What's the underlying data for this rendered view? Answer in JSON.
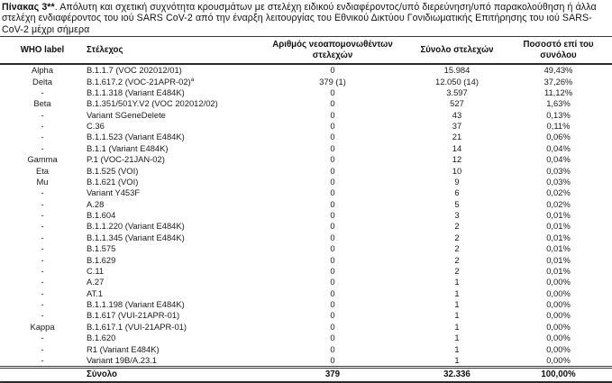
{
  "title": {
    "label": "Πίνακας 3**",
    "text": ". Απόλυτη και σχετική συχνότητα κρουσμάτων με στελέχη ειδικού ενδιαφέροντος/υπό διερεύνηση/υπό παρακολούθηση ή άλλα στελέχη ενδιαφέροντος του ιού SARS CoV-2 από την έναρξη λειτουργίας του Εθνικού Δικτύου Γονιδιωματικής Επιτήρησης του ιού SARS-CoV-2 μέχρι σήμερα"
  },
  "table": {
    "columns": {
      "who": "WHO label",
      "strain": "Στέλεχος",
      "new_isolates": "Αριθμός νεοαπομονωθέντων στελεχών",
      "total": "Σύνολο στελεχών",
      "pct": "Ποσοστό επί του συνόλου"
    },
    "rows": [
      {
        "who": "Alpha",
        "strain": "B.1.1.7 (VOC 202012/01)",
        "new_isolates": "0",
        "total": "15.984",
        "pct": "49,43%"
      },
      {
        "who": "Delta",
        "strain": "B.1.617.2 (VOC-21APR-02)",
        "sup": "a",
        "new_isolates": "379 (1)",
        "total": "12.050 (14)",
        "pct": "37,26%"
      },
      {
        "who": "-",
        "strain": "B.1.1.318 (Variant E484K)",
        "new_isolates": "0",
        "total": "3.597",
        "pct": "11,12%"
      },
      {
        "who": "Beta",
        "strain": "B.1.351/501Y.V2 (VOC 202012/02)",
        "new_isolates": "0",
        "total": "527",
        "pct": "1,63%"
      },
      {
        "who": "-",
        "strain": "Variant SGeneDelete",
        "new_isolates": "0",
        "total": "43",
        "pct": "0,13%"
      },
      {
        "who": "-",
        "strain": "C.36",
        "new_isolates": "0",
        "total": "37",
        "pct": "0,11%"
      },
      {
        "who": "-",
        "strain": "B.1.1.523 (Variant E484K)",
        "new_isolates": "0",
        "total": "21",
        "pct": "0,06%"
      },
      {
        "who": "-",
        "strain": "B.1.1 (Variant E484K)",
        "new_isolates": "0",
        "total": "14",
        "pct": "0,04%"
      },
      {
        "who": "Gamma",
        "strain": "P.1 (VOC-21JAN-02)",
        "new_isolates": "0",
        "total": "12",
        "pct": "0,04%"
      },
      {
        "who": "Eta",
        "strain": "B.1.525 (VOI)",
        "new_isolates": "0",
        "total": "10",
        "pct": "0,03%"
      },
      {
        "who": "Mu",
        "strain": "B.1.621 (VOI)",
        "new_isolates": "0",
        "total": "9",
        "pct": "0,03%"
      },
      {
        "who": "-",
        "strain": "Variant Y453F",
        "new_isolates": "0",
        "total": "6",
        "pct": "0,02%"
      },
      {
        "who": "-",
        "strain": "A.28",
        "new_isolates": "0",
        "total": "5",
        "pct": "0,02%"
      },
      {
        "who": "-",
        "strain": "B.1.604",
        "new_isolates": "0",
        "total": "3",
        "pct": "0,01%"
      },
      {
        "who": "-",
        "strain": "B.1.1.220 (Variant E484K)",
        "new_isolates": "0",
        "total": "2",
        "pct": "0,01%"
      },
      {
        "who": "-",
        "strain": "B.1.1.345 (Variant E484K)",
        "new_isolates": "0",
        "total": "2",
        "pct": "0,01%"
      },
      {
        "who": "-",
        "strain": "B.1.575",
        "new_isolates": "0",
        "total": "2",
        "pct": "0,01%"
      },
      {
        "who": "-",
        "strain": "B.1.629",
        "new_isolates": "0",
        "total": "2",
        "pct": "0,01%"
      },
      {
        "who": "-",
        "strain": "C.11",
        "new_isolates": "0",
        "total": "2",
        "pct": "0,01%"
      },
      {
        "who": "-",
        "strain": "A.27",
        "new_isolates": "0",
        "total": "1",
        "pct": "0,00%"
      },
      {
        "who": "-",
        "strain": "AT.1",
        "new_isolates": "0",
        "total": "1",
        "pct": "0,00%"
      },
      {
        "who": "-",
        "strain": "B.1.1.198 (Variant E484K)",
        "new_isolates": "0",
        "total": "1",
        "pct": "0,00%"
      },
      {
        "who": "-",
        "strain": "B.1.617 (VUI-21APR-01)",
        "new_isolates": "0",
        "total": "1",
        "pct": "0,00%"
      },
      {
        "who": "Kappa",
        "strain": "B.1.617.1 (VUI-21APR-01)",
        "new_isolates": "0",
        "total": "1",
        "pct": "0,00%"
      },
      {
        "who": "-",
        "strain": "B.1.620",
        "new_isolates": "0",
        "total": "1",
        "pct": "0,00%"
      },
      {
        "who": "-",
        "strain": "R1 (Variant E484K)",
        "new_isolates": "0",
        "total": "1",
        "pct": "0,00%"
      },
      {
        "who": "-",
        "strain": "Variant 19B/A.23.1",
        "new_isolates": "0",
        "total": "1",
        "pct": "0,00%"
      }
    ],
    "total_row": {
      "label": "Σύνολο",
      "new_isolates": "379",
      "total": "32.336",
      "pct": "100,00%"
    }
  },
  "footnote_cut_mark": ":"
}
